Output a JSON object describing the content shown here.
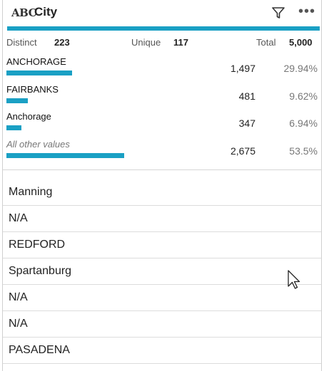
{
  "header": {
    "type_label": "ABC",
    "title": "City",
    "filter_icon": "filter-icon",
    "more_icon": "more-icon"
  },
  "colors": {
    "accent": "#1aa0c4",
    "row_border": "#dcdcdc"
  },
  "stats": {
    "distinct_label": "Distinct",
    "distinct_value": "223",
    "unique_label": "Unique",
    "unique_value": "117",
    "total_label": "Total",
    "total_value": "5,000"
  },
  "frequencies": [
    {
      "name": "ANCHORAGE",
      "count": "1,497",
      "percent": "29.94%",
      "share": 0.2994,
      "italic": false
    },
    {
      "name": "FAIRBANKS",
      "count": "481",
      "percent": "9.62%",
      "share": 0.0962,
      "italic": false
    },
    {
      "name": "Anchorage",
      "count": "347",
      "percent": "6.94%",
      "share": 0.0694,
      "italic": false
    },
    {
      "name": "All other values",
      "count": "2,675",
      "percent": "53.5%",
      "share": 0.535,
      "italic": true
    }
  ],
  "values": [
    "Manning",
    "N/A",
    "REDFORD",
    "Spartanburg",
    "N/A",
    "N/A",
    "PASADENA"
  ]
}
